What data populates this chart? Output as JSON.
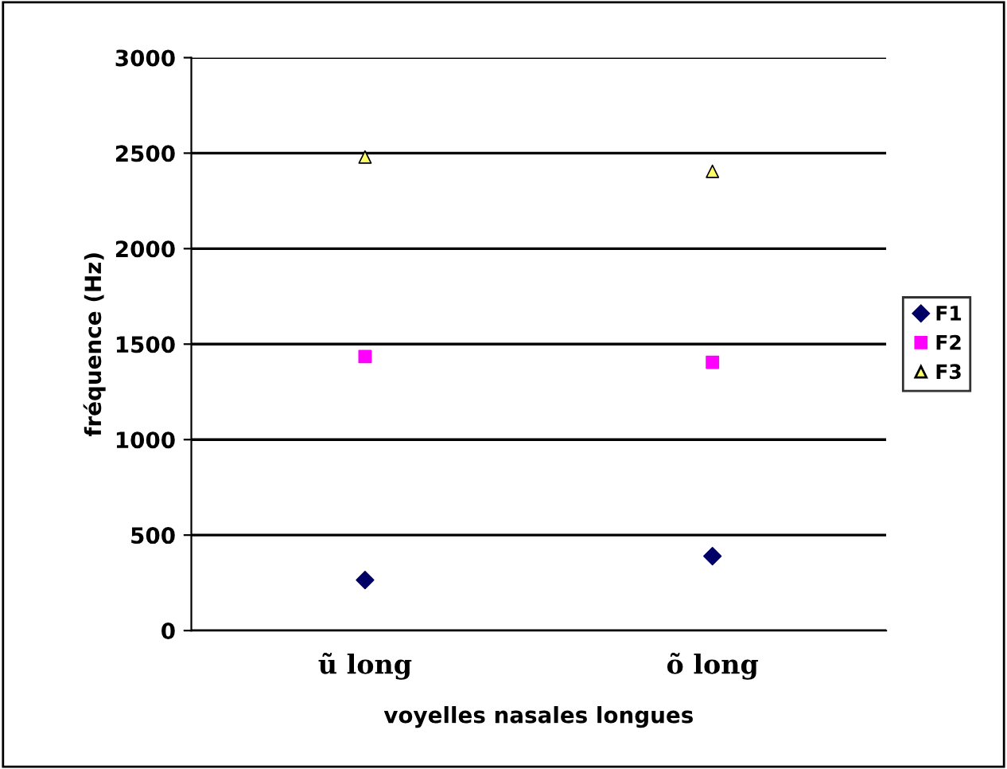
{
  "chart_data": {
    "type": "scatter",
    "xlabel": "voyelles nasales longues",
    "ylabel": "fréquence (Hz)",
    "categories": [
      "ũ long",
      "õ long"
    ],
    "series": [
      {
        "name": "F1",
        "color": "#000066",
        "marker": "diamond",
        "values": [
          265,
          390
        ]
      },
      {
        "name": "F2",
        "color": "#ff00ff",
        "marker": "square",
        "values": [
          1435,
          1405
        ]
      },
      {
        "name": "F3",
        "color": "#ffff66",
        "marker": "triangle",
        "values": [
          2480,
          2405
        ]
      }
    ],
    "ylim": [
      0,
      3000
    ],
    "yticks": [
      0,
      500,
      1000,
      1500,
      2000,
      2500,
      3000
    ],
    "grid": "y",
    "legend": "right"
  }
}
